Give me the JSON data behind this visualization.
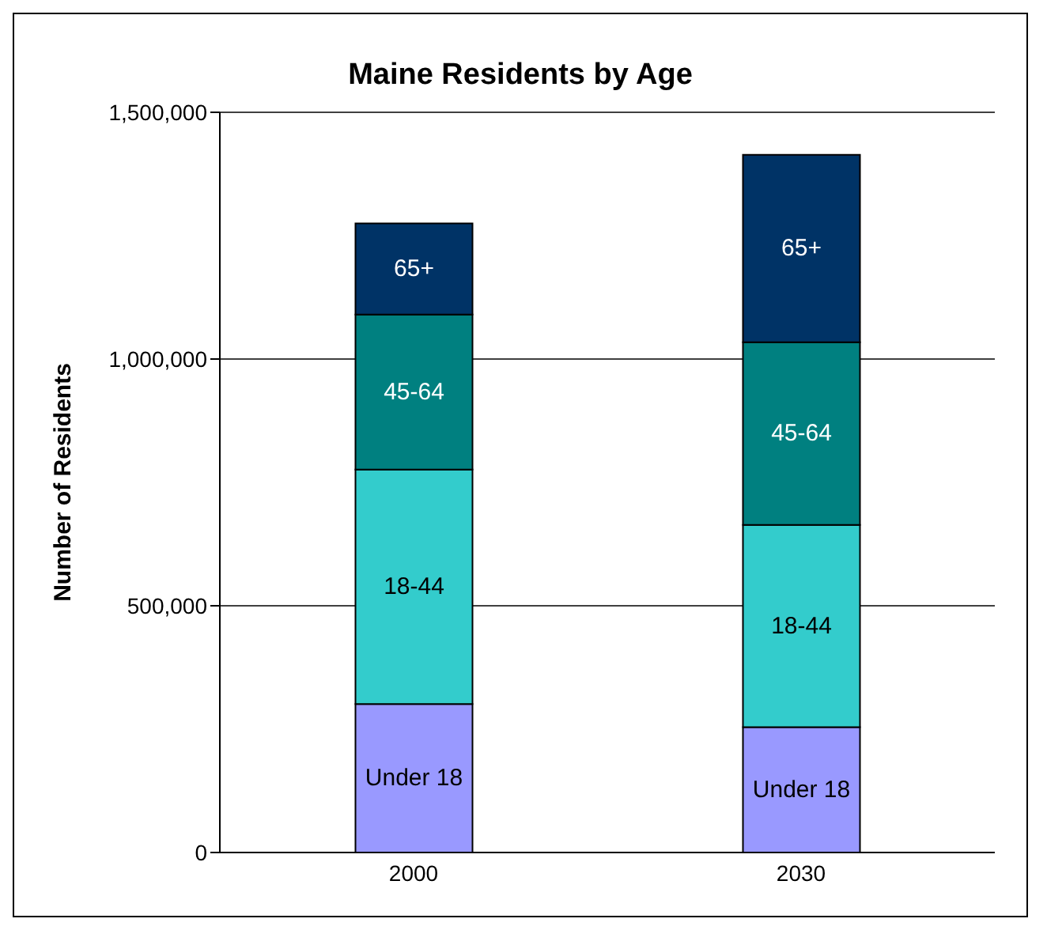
{
  "chart_data": {
    "type": "bar",
    "title": "Maine Residents by Age",
    "ylabel": "Number of Residents",
    "categories": [
      "2000",
      "2030"
    ],
    "stacked": true,
    "series": [
      {
        "name": "Under 18",
        "color": "#9999ff",
        "values": [
          301000,
          254000
        ]
      },
      {
        "name": "18-44",
        "color": "#33cccc",
        "values": [
          475000,
          410000
        ]
      },
      {
        "name": "45-64",
        "color": "#008080",
        "values": [
          314000,
          370000
        ]
      },
      {
        "name": "65+",
        "color": "#003366",
        "values": [
          185000,
          380000
        ]
      }
    ],
    "ylim": [
      0,
      1500000
    ],
    "yticks": [
      0,
      {
        "value": 500000,
        "label": "500,000"
      },
      {
        "value": 1000000,
        "label": "1,000,000"
      },
      {
        "value": 1500000,
        "label": "1,500,000"
      }
    ],
    "grid": "y",
    "legend": false
  }
}
